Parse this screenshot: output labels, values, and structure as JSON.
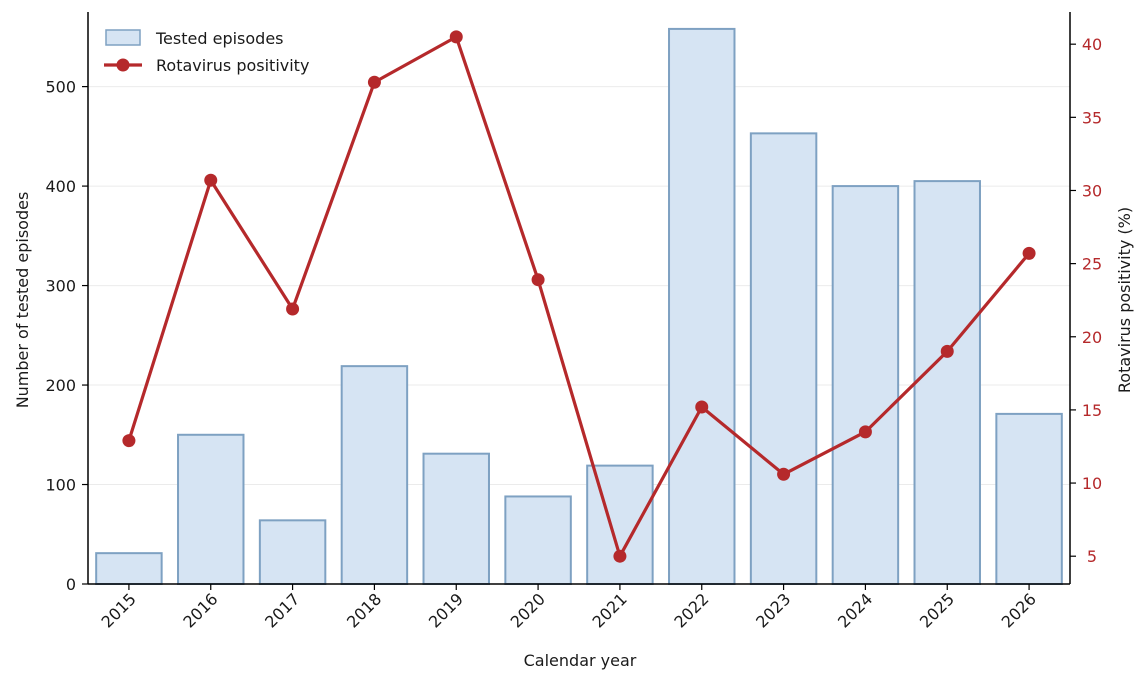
{
  "chart_data": {
    "type": "bar",
    "combo": "bar+line (dual axis)",
    "categories": [
      "2015",
      "2016",
      "2017",
      "2018",
      "2019",
      "2020",
      "2021",
      "2022",
      "2023",
      "2024",
      "2025",
      "2026"
    ],
    "series": [
      {
        "name": "Tested episodes",
        "type": "bar",
        "axis": "left",
        "values": [
          31,
          150,
          64,
          219,
          131,
          88,
          119,
          558,
          453,
          400,
          405,
          171
        ]
      },
      {
        "name": "Rotavirus positivity",
        "type": "line",
        "axis": "right",
        "values": [
          12.9,
          30.7,
          21.9,
          37.4,
          40.5,
          23.9,
          5.0,
          15.2,
          10.6,
          13.5,
          19.0,
          25.7
        ]
      }
    ],
    "xlabel": "Calendar year",
    "ylabel": "Number of tested episodes",
    "y2label": "Rotavirus positivity (%)",
    "ylim": [
      0,
      575
    ],
    "y2lim": [
      3.1,
      42.2
    ],
    "yticks": [
      0,
      100,
      200,
      300,
      400,
      500
    ],
    "y2ticks": [
      5,
      10,
      15,
      20,
      25,
      30,
      35,
      40
    ],
    "grid": "horizontal",
    "legend": "top-left",
    "colors": {
      "bar_fill": "#d6e4f3",
      "bar_stroke": "#7ea1c2",
      "line": "#b5292b",
      "right_axis": "#b5292b",
      "grid": "#ebebeb"
    }
  }
}
